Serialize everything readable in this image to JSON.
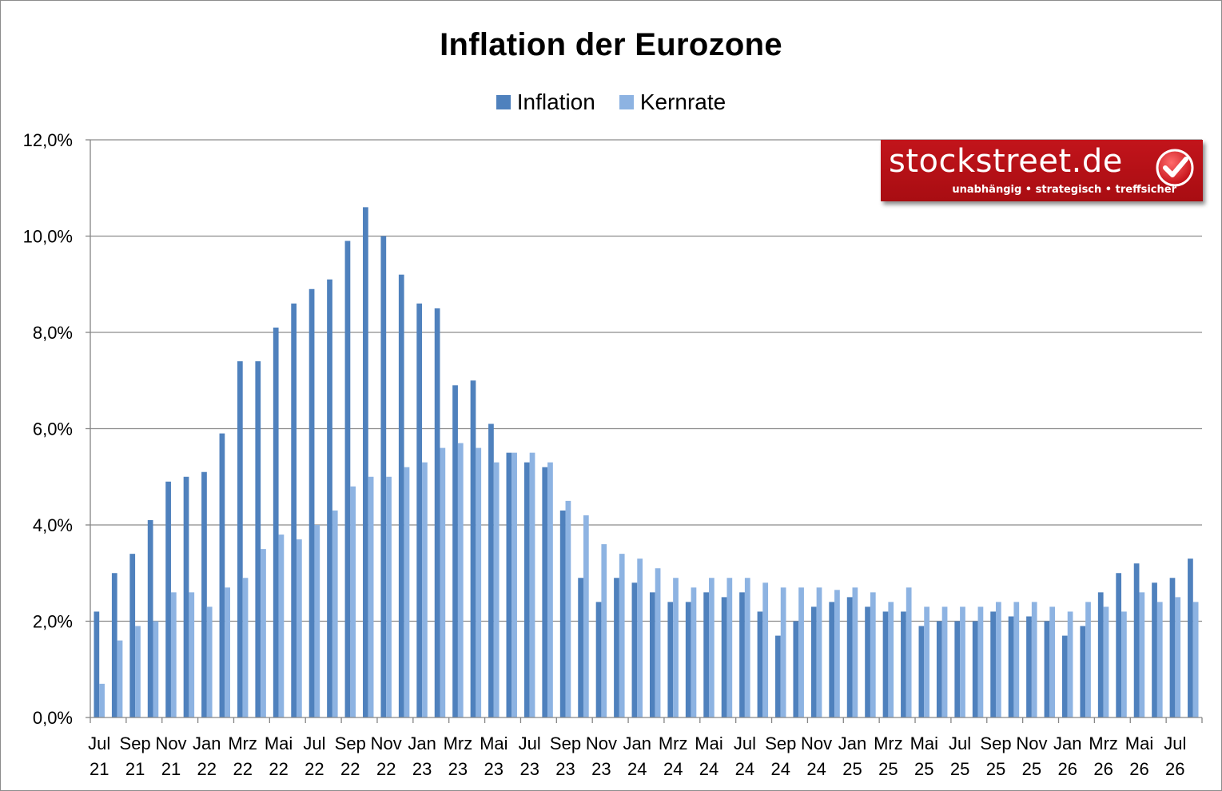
{
  "chart_data": {
    "type": "bar",
    "title": "Inflation der Eurozone",
    "ylim": [
      0,
      12
    ],
    "y_ticks": [
      "0,0%",
      "2,0%",
      "4,0%",
      "6,0%",
      "8,0%",
      "10,0%",
      "12,0%"
    ],
    "grid": true,
    "legend_position": "top-center",
    "months": [
      "Jul 21",
      "Aug 21",
      "Sep 21",
      "Okt 21",
      "Nov 21",
      "Dez 21",
      "Jan 22",
      "Feb 22",
      "Mrz 22",
      "Apr 22",
      "Mai 22",
      "Jun 22",
      "Jul 22",
      "Aug 22",
      "Sep 22",
      "Okt 22",
      "Nov 22",
      "Dez 22",
      "Jan 23",
      "Feb 23",
      "Mrz 23",
      "Apr 23",
      "Mai 23",
      "Jun 23",
      "Jul 23",
      "Aug 23",
      "Sep 23",
      "Okt 23",
      "Nov 23",
      "Dez 23",
      "Jan 24",
      "Feb 24",
      "Mrz 24",
      "Apr 24",
      "Mai 24",
      "Jun 24",
      "Jul 24",
      "Aug 24",
      "Sep 24",
      "Okt 24",
      "Nov 24",
      "Dez 24",
      "Jan 25",
      "Feb 25",
      "Mrz 25",
      "Apr 25",
      "Mai 25",
      "Jun 25",
      "Jul 25",
      "Aug 25",
      "Sep 25",
      "Okt 25",
      "Nov 25",
      "Dez 25",
      "Jan 26",
      "Feb 26",
      "Mrz 26",
      "Apr 26",
      "Mai 26",
      "Jun 26",
      "Jul 26",
      "Aug 26"
    ],
    "x_tick_labels": [
      {
        "index": 0,
        "month": "Jul",
        "year": "21"
      },
      {
        "index": 2,
        "month": "Sep",
        "year": "21"
      },
      {
        "index": 4,
        "month": "Nov",
        "year": "21"
      },
      {
        "index": 6,
        "month": "Jan",
        "year": "22"
      },
      {
        "index": 8,
        "month": "Mrz",
        "year": "22"
      },
      {
        "index": 10,
        "month": "Mai",
        "year": "22"
      },
      {
        "index": 12,
        "month": "Jul",
        "year": "22"
      },
      {
        "index": 14,
        "month": "Sep",
        "year": "22"
      },
      {
        "index": 16,
        "month": "Nov",
        "year": "22"
      },
      {
        "index": 18,
        "month": "Jan",
        "year": "23"
      },
      {
        "index": 20,
        "month": "Mrz",
        "year": "23"
      },
      {
        "index": 22,
        "month": "Mai",
        "year": "23"
      },
      {
        "index": 24,
        "month": "Jul",
        "year": "23"
      },
      {
        "index": 26,
        "month": "Sep",
        "year": "23"
      },
      {
        "index": 28,
        "month": "Nov",
        "year": "23"
      },
      {
        "index": 30,
        "month": "Jan",
        "year": "24"
      },
      {
        "index": 32,
        "month": "Mrz",
        "year": "24"
      },
      {
        "index": 34,
        "month": "Mai",
        "year": "24"
      },
      {
        "index": 36,
        "month": "Jul",
        "year": "24"
      },
      {
        "index": 38,
        "month": "Sep",
        "year": "24"
      },
      {
        "index": 40,
        "month": "Nov",
        "year": "24"
      },
      {
        "index": 42,
        "month": "Jan",
        "year": "25"
      },
      {
        "index": 44,
        "month": "Mrz",
        "year": "25"
      },
      {
        "index": 46,
        "month": "Mai",
        "year": "25"
      },
      {
        "index": 48,
        "month": "Jul",
        "year": "25"
      },
      {
        "index": 50,
        "month": "Sep",
        "year": "25"
      },
      {
        "index": 52,
        "month": "Nov",
        "year": "25"
      },
      {
        "index": 54,
        "month": "Jan",
        "year": "26"
      },
      {
        "index": 56,
        "month": "Mrz",
        "year": "26"
      },
      {
        "index": 58,
        "month": "Mai",
        "year": "26"
      },
      {
        "index": 60,
        "month": "Jul",
        "year": "26"
      }
    ],
    "series": [
      {
        "name": "Inflation",
        "color": "#4f81bd",
        "values": [
          2.2,
          3.0,
          3.4,
          4.1,
          4.9,
          5.0,
          5.1,
          5.9,
          7.4,
          7.4,
          8.1,
          8.6,
          8.9,
          9.1,
          9.9,
          10.6,
          10.0,
          9.2,
          8.6,
          8.5,
          6.9,
          7.0,
          6.1,
          5.5,
          5.3,
          5.2,
          4.3,
          2.9,
          2.4,
          2.9,
          2.8,
          2.6,
          2.4,
          2.4,
          2.6,
          2.5,
          2.6,
          2.2,
          1.7,
          2.0,
          2.3,
          2.4,
          2.5,
          2.3,
          2.2,
          2.2,
          1.9,
          2.0,
          2.0,
          2.0,
          2.2,
          2.1,
          2.1,
          2.0,
          1.7,
          1.9,
          2.6,
          3.0,
          3.2,
          2.8,
          2.9,
          3.3
        ]
      },
      {
        "name": "Kernrate",
        "color": "#8db3e2",
        "values": [
          0.7,
          1.6,
          1.9,
          2.0,
          2.6,
          2.6,
          2.3,
          2.7,
          2.9,
          3.5,
          3.8,
          3.7,
          4.0,
          4.3,
          4.8,
          5.0,
          5.0,
          5.2,
          5.3,
          5.6,
          5.7,
          5.6,
          5.3,
          5.5,
          5.5,
          5.3,
          4.5,
          4.2,
          3.6,
          3.4,
          3.3,
          3.1,
          2.9,
          2.7,
          2.9,
          2.9,
          2.9,
          2.8,
          2.7,
          2.7,
          2.7,
          2.65,
          2.7,
          2.6,
          2.4,
          2.7,
          2.3,
          2.3,
          2.3,
          2.3,
          2.4,
          2.4,
          2.4,
          2.3,
          2.2,
          2.4,
          2.3,
          2.2,
          2.6,
          2.4,
          2.5,
          2.4
        ]
      }
    ]
  },
  "brand": {
    "name": "stockstreet.de",
    "tagline": "unabhängig • strategisch • treffsicher",
    "icon": "check-icon",
    "color": "#b31117"
  }
}
